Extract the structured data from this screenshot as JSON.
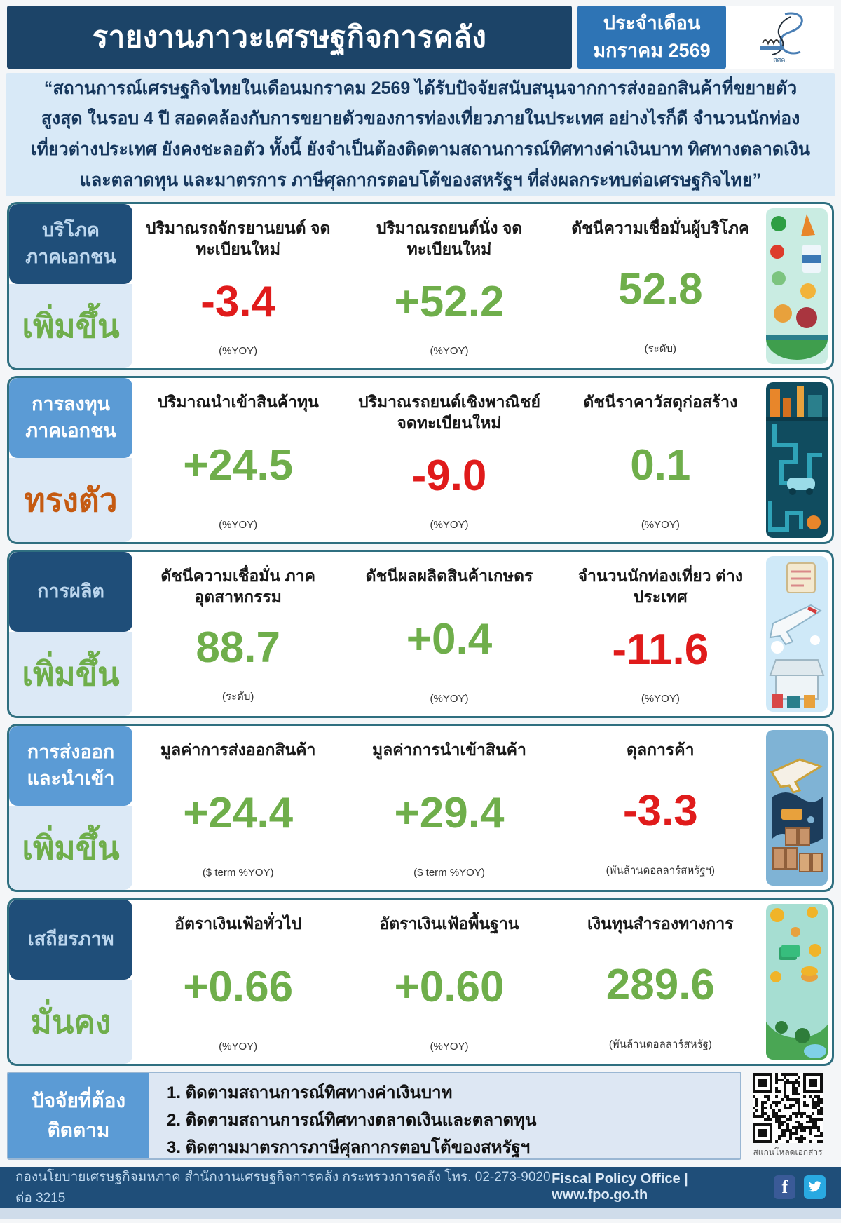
{
  "header": {
    "title": "รายงานภาวะเศรษฐกิจการคลัง",
    "period_line1": "ประจำเดือน",
    "period_line2": "มกราคม 2569",
    "logo_text": "สศค."
  },
  "quote": "“สถานการณ์เศรษฐกิจไทยในเดือนมกราคม 2569 ได้รับปัจจัยสนับสนุนจากการส่งออกสินค้าที่ขยายตัวสูงสุด ในรอบ 4 ปี สอดคล้องกับการขยายตัวของการท่องเที่ยวภายในประเทศ อย่างไรก็ดี จำนวนนักท่องเที่ยวต่างประเทศ ยังคงชะลอตัว ทั้งนี้ ยังจำเป็นต้องติดตามสถานการณ์ทิศทางค่าเงินบาท ทิศทางตลาดเงินและตลาดทุน และมาตรการ ภาษีศุลกากรตอบโต้ของสหรัฐฯ ที่ส่งผลกระทบต่อเศรษฐกิจไทย”",
  "colors": {
    "navy": "#1f4e79",
    "medium_blue": "#5b9bd5",
    "light_blue_bg": "#dce9f6",
    "positive_green": "#6fae4b",
    "negative_red": "#e01b1b",
    "neutral_orange": "#c55a11"
  },
  "sections": [
    {
      "label_line1": "บริโภค",
      "label_line2": "ภาคเอกชน",
      "status": "เพิ่มขึ้น",
      "status_color": "#6fae4b",
      "metrics": [
        {
          "label": "ปริมาณรถจักรยานยนต์ จดทะเบียนใหม่",
          "value": "-3.4",
          "unit": "(%YOY)",
          "color": "#e01b1b"
        },
        {
          "label": "ปริมาณรถยนต์นั่ง จดทะเบียนใหม่",
          "value": "+52.2",
          "unit": "(%YOY)",
          "color": "#6fae4b"
        },
        {
          "label": "ดัชนีความเชื่อมั่นผู้บริโภค",
          "value": "52.8",
          "unit": "(ระดับ)",
          "color": "#6fae4b"
        }
      ]
    },
    {
      "label_line1": "การลงทุน",
      "label_line2": "ภาคเอกชน",
      "status": "ทรงตัว",
      "status_color": "#c55a11",
      "metrics": [
        {
          "label": "ปริมาณนำเข้าสินค้าทุน",
          "value": "+24.5",
          "unit": "(%YOY)",
          "color": "#6fae4b"
        },
        {
          "label": "ปริมาณรถยนต์เชิงพาณิชย์ จดทะเบียนใหม่",
          "value": "-9.0",
          "unit": "(%YOY)",
          "color": "#e01b1b"
        },
        {
          "label": "ดัชนีราคาวัสดุก่อสร้าง",
          "value": "0.1",
          "unit": "(%YOY)",
          "color": "#6fae4b"
        }
      ]
    },
    {
      "label_line1": "การผลิต",
      "label_line2": "",
      "status": "เพิ่มขึ้น",
      "status_color": "#6fae4b",
      "metrics": [
        {
          "label": "ดัชนีความเชื่อมั่น ภาคอุตสาหกรรม",
          "value": "88.7",
          "unit": "(ระดับ)",
          "color": "#6fae4b"
        },
        {
          "label": "ดัชนีผลผลิตสินค้าเกษตร",
          "value": "+0.4",
          "unit": "(%YOY)",
          "color": "#6fae4b"
        },
        {
          "label": "จำนวนนักท่องเที่ยว ต่างประเทศ",
          "value": "-11.6",
          "unit": "(%YOY)",
          "color": "#e01b1b"
        }
      ]
    },
    {
      "label_line1": "การส่งออก",
      "label_line2": "และนำเข้า",
      "status": "เพิ่มขึ้น",
      "status_color": "#6fae4b",
      "metrics": [
        {
          "label": "มูลค่าการส่งออกสินค้า",
          "value": "+24.4",
          "unit": "($ term %YOY)",
          "color": "#6fae4b"
        },
        {
          "label": "มูลค่าการนำเข้าสินค้า",
          "value": "+29.4",
          "unit": "($ term %YOY)",
          "color": "#6fae4b"
        },
        {
          "label": "ดุลการค้า",
          "value": "-3.3",
          "unit": "(พันล้านดอลลาร์สหรัฐฯ)",
          "color": "#e01b1b"
        }
      ]
    },
    {
      "label_line1": "เสถียรภาพ",
      "label_line2": "",
      "status": "มั่นคง",
      "status_color": "#6fae4b",
      "metrics": [
        {
          "label": "อัตราเงินเฟ้อทั่วไป",
          "value": "+0.66",
          "unit": "(%YOY)",
          "color": "#6fae4b"
        },
        {
          "label": "อัตราเงินเฟ้อพื้นฐาน",
          "value": "+0.60",
          "unit": "(%YOY)",
          "color": "#6fae4b"
        },
        {
          "label": "เงินทุนสำรองทางการ",
          "value": "289.6",
          "unit": "(พันล้านดอลลาร์สหรัฐ)",
          "color": "#6fae4b"
        }
      ]
    }
  ],
  "factors": {
    "title_line1": "ปัจจัยที่ต้อง",
    "title_line2": "ติดตาม",
    "items": [
      "1. ติดตามสถานการณ์ทิศทางค่าเงินบาท",
      "2. ติดตามสถานการณ์ทิศทางตลาดเงินและตลาดทุน",
      "3. ติดตามมาตรการภาษีศุลกากรตอบโต้ของสหรัฐฯ"
    ],
    "qr_caption": "สแกนโหลดเอกสาร"
  },
  "footer": {
    "left": "กองนโยบายเศรษฐกิจมหภาค สำนักงานเศรษฐกิจการคลัง กระทรวงการคลัง โทร. 02-273-9020 ต่อ 3215",
    "right": "Fiscal Policy Office | www.fpo.go.th",
    "facebook_label": "f"
  }
}
